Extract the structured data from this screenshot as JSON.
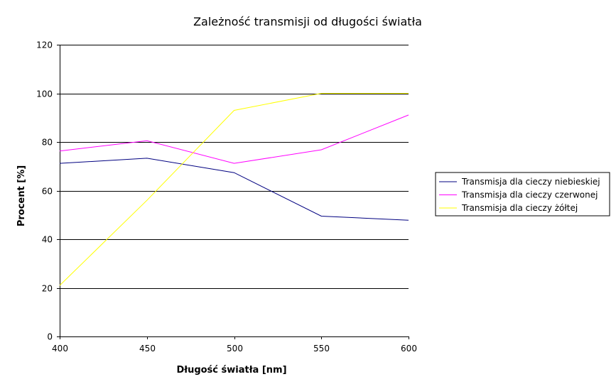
{
  "chart_data": {
    "type": "line",
    "title": "Zależność transmisji od długości światła",
    "xlabel": "Długość światła [nm]",
    "ylabel": "Procent [%]",
    "x": [
      400,
      450,
      500,
      550,
      600
    ],
    "xlim": [
      400,
      600
    ],
    "ylim": [
      0,
      120
    ],
    "xticks": [
      400,
      450,
      500,
      550,
      600
    ],
    "yticks": [
      0,
      20,
      40,
      60,
      80,
      100,
      120
    ],
    "grid": "horizontal",
    "legend_position": "right",
    "series": [
      {
        "name": "Transmisja dla cieczy niebieskiej",
        "color": "#000080",
        "values": [
          71.2,
          73.3,
          67.4,
          49.5,
          47.8
        ]
      },
      {
        "name": "Transmisja dla cieczy czerwonej",
        "color": "#FF00FF",
        "values": [
          76.3,
          80.5,
          71.2,
          76.8,
          91.1
        ]
      },
      {
        "name": "Transmisja dla cieczy żółtej",
        "color": "#FFFF00",
        "values": [
          21.0,
          56.0,
          93.0,
          100.0,
          100.0
        ]
      }
    ]
  }
}
